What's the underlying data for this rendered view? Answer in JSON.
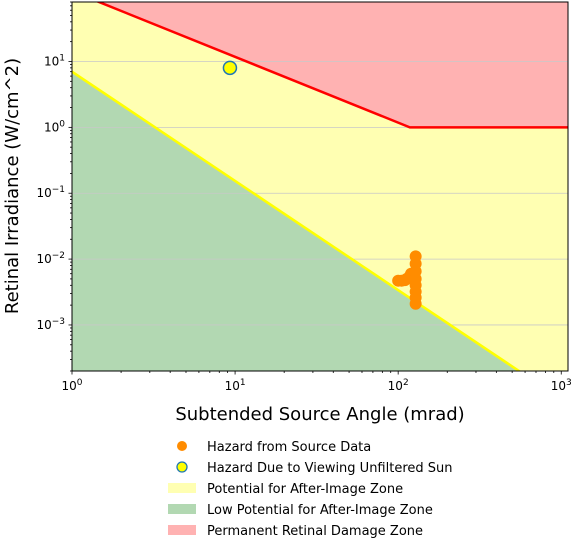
{
  "chart_data": {
    "type": "scatter",
    "xlabel": "Subtended Source Angle (mrad)",
    "ylabel": "Retinal Irradiance (W/cm^2)",
    "x_scale": "log",
    "y_scale": "log",
    "xlim": [
      1,
      1100
    ],
    "ylim": [
      0.0002,
      80
    ],
    "grid": "horizontal lines at y major ticks",
    "x_ticks": [
      {
        "value": 1,
        "base": "10",
        "exp": "0"
      },
      {
        "value": 10,
        "base": "10",
        "exp": "1"
      },
      {
        "value": 100,
        "base": "10",
        "exp": "2"
      },
      {
        "value": 1000,
        "base": "10",
        "exp": "3"
      }
    ],
    "y_ticks": [
      {
        "value": 0.001,
        "base": "10",
        "exp": "−3"
      },
      {
        "value": 0.01,
        "base": "10",
        "exp": "−2"
      },
      {
        "value": 0.1,
        "base": "10",
        "exp": "−1"
      },
      {
        "value": 1,
        "base": "10",
        "exp": "0"
      },
      {
        "value": 10,
        "base": "10",
        "exp": "1"
      }
    ],
    "zones": [
      {
        "name": "Potential for After-Image Zone",
        "color": "#ffffb2"
      },
      {
        "name": "Low Potential for After-Image Zone",
        "color": "#b2d8b2"
      },
      {
        "name": "Permanent Retinal Damage Zone",
        "color": "#ffb2b2"
      }
    ],
    "boundary_lines": [
      {
        "name": "permanent damage threshold",
        "color": "#ff0000",
        "x": [
          1,
          118,
          1100
        ],
        "y": [
          117,
          1,
          1
        ]
      },
      {
        "name": "after-image threshold",
        "color": "#ffff00",
        "x": [
          1,
          1100
        ],
        "y": [
          7,
          6.35e-05
        ]
      }
    ],
    "series": [
      {
        "name": "Hazard from Source Data",
        "color": "#ff8c00",
        "marker": "circle",
        "points": [
          [
            100,
            0.0047
          ],
          [
            105,
            0.0047
          ],
          [
            110,
            0.0048
          ],
          [
            113,
            0.005
          ],
          [
            116,
            0.0052
          ],
          [
            118,
            0.0055
          ],
          [
            120,
            0.006
          ],
          [
            128,
            0.011
          ],
          [
            128,
            0.0085
          ],
          [
            128,
            0.0065
          ],
          [
            128,
            0.005
          ],
          [
            128,
            0.004
          ],
          [
            128,
            0.0032
          ],
          [
            128,
            0.0026
          ],
          [
            128,
            0.0021
          ]
        ]
      },
      {
        "name": "Hazard Due to Viewing Unfiltered Sun",
        "color": "#ffff00",
        "edge_color": "#1f77b4",
        "marker": "circle",
        "points": [
          [
            9.3,
            8.0
          ]
        ]
      }
    ],
    "legend": {
      "placement": "below-plot",
      "entries": [
        {
          "label": "Hazard from Source Data",
          "kind": "marker",
          "color": "#ff8c00"
        },
        {
          "label": "Hazard Due to Viewing Unfiltered Sun",
          "kind": "marker",
          "color": "#ffff00",
          "edge": "#1f77b4"
        },
        {
          "label": "Potential for After-Image Zone",
          "kind": "patch",
          "color": "#ffffb2"
        },
        {
          "label": "Low Potential for After-Image Zone",
          "kind": "patch",
          "color": "#b2d8b2"
        },
        {
          "label": "Permanent Retinal Damage Zone",
          "kind": "patch",
          "color": "#ffb2b2"
        }
      ]
    }
  }
}
